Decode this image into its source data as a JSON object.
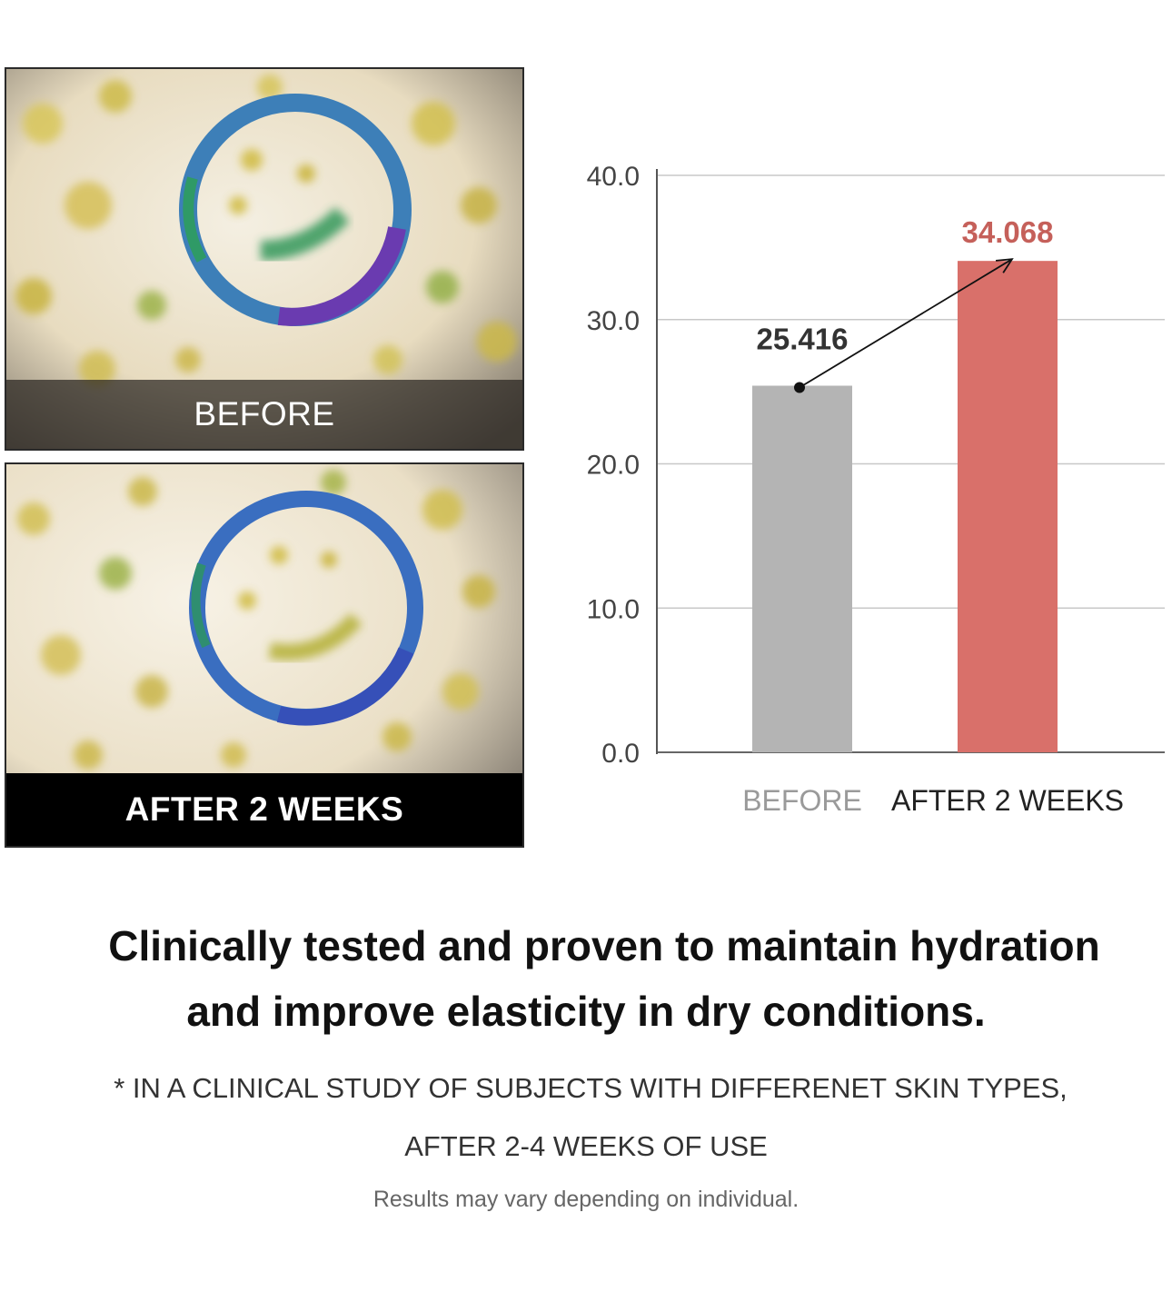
{
  "photos": {
    "before_label": "BEFORE",
    "after_label": "AFTER 2 WEEKS"
  },
  "chart_data": {
    "type": "bar",
    "categories": [
      "BEFORE",
      "AFTER 2 WEEKS"
    ],
    "values": [
      25.416,
      34.068
    ],
    "value_labels": [
      "25.416",
      "34.068"
    ],
    "yticks": [
      "0.0",
      "10.0",
      "20.0",
      "30.0",
      "40.0"
    ],
    "ylim": [
      0,
      40
    ],
    "grid": true,
    "colors": [
      "#b4b4b4",
      "#d9706a"
    ],
    "category_label_colors": [
      "#9a9a9a",
      "#222222"
    ],
    "value_label_colors": [
      "#333333",
      "#c5605a"
    ]
  },
  "headline": {
    "line1": "Clinically tested and proven to maintain hydration",
    "line2": "and improve elasticity in dry conditions."
  },
  "footnote": {
    "line1": "* IN A CLINICAL STUDY OF SUBJECTS WITH DIFFERENET SKIN TYPES,",
    "line2": "AFTER 2-4 WEEKS OF USE",
    "disclaimer": "Results may vary depending on individual."
  }
}
